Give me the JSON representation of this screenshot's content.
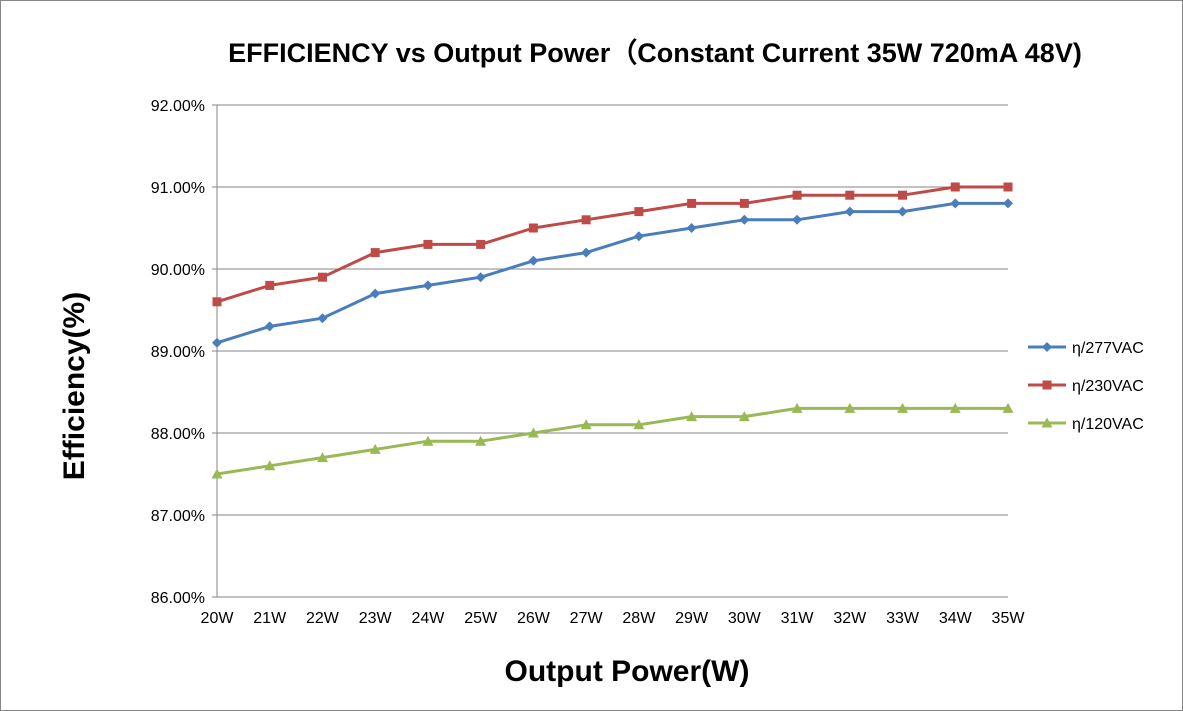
{
  "chart_data": {
    "type": "line",
    "title": "EFFICIENCY vs Output Power（Constant Current 35W 720mA 48V)",
    "xlabel": "Output Power(W)",
    "ylabel": "Efficiency(%)",
    "categories": [
      "20W",
      "21W",
      "22W",
      "23W",
      "24W",
      "25W",
      "26W",
      "27W",
      "28W",
      "29W",
      "30W",
      "31W",
      "32W",
      "33W",
      "34W",
      "35W"
    ],
    "ylim": [
      86,
      92
    ],
    "yticks": [
      86,
      87,
      88,
      89,
      90,
      91,
      92
    ],
    "ytick_labels": [
      "86.00%",
      "87.00%",
      "88.00%",
      "89.00%",
      "90.00%",
      "91.00%",
      "92.00%"
    ],
    "grid": "horizontal",
    "legend_position": "right",
    "series": [
      {
        "name": "η/277VAC",
        "color": "#4a7ebb",
        "marker": "diamond",
        "values": [
          89.1,
          89.3,
          89.4,
          89.7,
          89.8,
          89.9,
          90.1,
          90.2,
          90.4,
          90.5,
          90.6,
          90.6,
          90.7,
          90.7,
          90.8,
          90.8
        ]
      },
      {
        "name": "η/230VAC",
        "color": "#be4b48",
        "marker": "square",
        "values": [
          89.6,
          89.8,
          89.9,
          90.2,
          90.3,
          90.3,
          90.5,
          90.6,
          90.7,
          90.8,
          90.8,
          90.9,
          90.9,
          90.9,
          91.0,
          91.0
        ]
      },
      {
        "name": "η/120VAC",
        "color": "#98b954",
        "marker": "triangle",
        "values": [
          87.5,
          87.6,
          87.7,
          87.8,
          87.9,
          87.9,
          88.0,
          88.1,
          88.1,
          88.2,
          88.2,
          88.3,
          88.3,
          88.3,
          88.3,
          88.3
        ]
      }
    ]
  }
}
